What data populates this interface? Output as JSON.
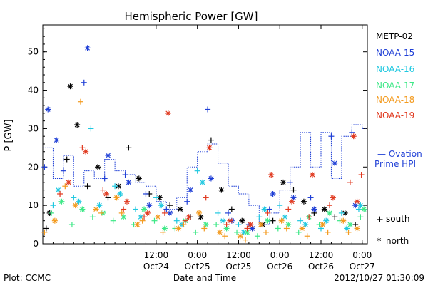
{
  "chart_data": {
    "type": "scatter",
    "title": "Hemispheric Power [GW]",
    "xlabel": "Date and Time",
    "ylabel": "P [GW]",
    "xlim": [
      "2012-10-23T03:00",
      "2012-10-27T01:30"
    ],
    "ylim": [
      0,
      57
    ],
    "yticks": [
      0,
      10,
      20,
      30,
      40,
      50
    ],
    "xticks": [
      {
        "at": "2012-10-24T12:00",
        "line1": "12:00",
        "line2": "Oct24"
      },
      {
        "at": "2012-10-25T00:00",
        "line1": "0:00",
        "line2": "Oct25"
      },
      {
        "at": "2012-10-25T12:00",
        "line1": "12:00",
        "line2": "Oct25"
      },
      {
        "at": "2012-10-26T00:00",
        "line1": "0:00",
        "line2": "Oct26"
      },
      {
        "at": "2012-10-26T12:00",
        "line1": "12:00",
        "line2": "Oct26"
      },
      {
        "at": "2012-10-27T00:00",
        "line1": "0:00",
        "line2": "Oct27"
      }
    ],
    "legend": {
      "placement": "right",
      "entries": [
        {
          "name": "METP-02",
          "color": "#000000"
        },
        {
          "name": "NOAA-15",
          "color": "#1f3fd6"
        },
        {
          "name": "NOAA-16",
          "color": "#1fc8e0"
        },
        {
          "name": "NOAA-17",
          "color": "#3ee887"
        },
        {
          "name": "NOAA-18",
          "color": "#f39a1e"
        },
        {
          "name": "NOAA-19",
          "color": "#e0381e"
        }
      ],
      "ovation_label_1": "— Ovation",
      "ovation_label_2": "Prime HPI",
      "marker_south_symbol": "+",
      "marker_south_label": "south",
      "marker_north_symbol": "*",
      "marker_north_label": "north"
    },
    "ovation_series": {
      "color": "#1f3fd6",
      "x": [
        "2012-10-23T03:00",
        "2012-10-23T06:00",
        "2012-10-23T09:00",
        "2012-10-23T12:00",
        "2012-10-23T15:00",
        "2012-10-23T18:00",
        "2012-10-23T21:00",
        "2012-10-24T00:00",
        "2012-10-24T03:00",
        "2012-10-24T06:00",
        "2012-10-24T09:00",
        "2012-10-24T12:00",
        "2012-10-24T15:00",
        "2012-10-24T18:00",
        "2012-10-24T21:00",
        "2012-10-25T00:00",
        "2012-10-25T03:00",
        "2012-10-25T06:00",
        "2012-10-25T09:00",
        "2012-10-25T12:00",
        "2012-10-25T15:00",
        "2012-10-25T18:00",
        "2012-10-25T21:00",
        "2012-10-26T00:00",
        "2012-10-26T03:00",
        "2012-10-26T06:00",
        "2012-10-26T09:00",
        "2012-10-26T12:00",
        "2012-10-26T15:00",
        "2012-10-26T18:00",
        "2012-10-26T21:00",
        "2012-10-27T00:00"
      ],
      "y": [
        25,
        17,
        23,
        15,
        19,
        17,
        22,
        19,
        18,
        16,
        15,
        11,
        9,
        12,
        20,
        24,
        26,
        21,
        15,
        13,
        10,
        5,
        8,
        14,
        20,
        29,
        20,
        29,
        17,
        28,
        31,
        30
      ]
    },
    "series": [
      {
        "name": "METP-02",
        "color": "#000000",
        "south": [
          [
            "2012-10-23T04:00",
            4
          ],
          [
            "2012-10-23T10:00",
            22
          ],
          [
            "2012-10-23T16:00",
            15
          ],
          [
            "2012-10-23T22:00",
            12
          ],
          [
            "2012-10-24T04:00",
            25
          ],
          [
            "2012-10-24T10:00",
            13
          ],
          [
            "2012-10-24T16:00",
            10
          ],
          [
            "2012-10-24T22:00",
            7
          ],
          [
            "2012-10-25T04:00",
            27
          ],
          [
            "2012-10-25T10:00",
            9
          ],
          [
            "2012-10-25T16:00",
            4
          ],
          [
            "2012-10-25T22:00",
            6
          ],
          [
            "2012-10-26T04:00",
            14
          ],
          [
            "2012-10-26T10:00",
            8
          ],
          [
            "2012-10-26T16:00",
            7
          ],
          [
            "2012-10-26T22:00",
            5
          ]
        ],
        "north": [
          [
            "2012-10-23T05:00",
            8
          ],
          [
            "2012-10-23T11:00",
            41
          ],
          [
            "2012-10-23T13:00",
            31
          ],
          [
            "2012-10-23T19:00",
            20
          ],
          [
            "2012-10-24T01:00",
            15
          ],
          [
            "2012-10-24T07:00",
            17
          ],
          [
            "2012-10-24T13:00",
            12
          ],
          [
            "2012-10-24T19:00",
            9
          ],
          [
            "2012-10-25T01:00",
            7
          ],
          [
            "2012-10-25T07:00",
            14
          ],
          [
            "2012-10-25T13:00",
            6
          ],
          [
            "2012-10-25T19:00",
            5
          ],
          [
            "2012-10-26T01:00",
            16
          ],
          [
            "2012-10-26T07:00",
            11
          ],
          [
            "2012-10-26T13:00",
            9
          ],
          [
            "2012-10-26T19:00",
            8
          ]
        ]
      },
      {
        "name": "NOAA-15",
        "color": "#1f3fd6",
        "south": [
          [
            "2012-10-23T03:30",
            20
          ],
          [
            "2012-10-23T09:00",
            19
          ],
          [
            "2012-10-23T15:00",
            42
          ],
          [
            "2012-10-23T21:00",
            17
          ],
          [
            "2012-10-24T03:00",
            18
          ],
          [
            "2012-10-24T09:00",
            13
          ],
          [
            "2012-10-24T15:00",
            9
          ],
          [
            "2012-10-24T21:00",
            11
          ],
          [
            "2012-10-25T03:00",
            35
          ],
          [
            "2012-10-25T09:00",
            8
          ],
          [
            "2012-10-25T15:00",
            5
          ],
          [
            "2012-10-25T21:00",
            9
          ],
          [
            "2012-10-26T03:00",
            16
          ],
          [
            "2012-10-26T09:00",
            12
          ],
          [
            "2012-10-26T15:00",
            28
          ],
          [
            "2012-10-26T21:00",
            29
          ]
        ],
        "north": [
          [
            "2012-10-23T04:30",
            35
          ],
          [
            "2012-10-23T07:00",
            27
          ],
          [
            "2012-10-23T16:00",
            51
          ],
          [
            "2012-10-23T22:00",
            23
          ],
          [
            "2012-10-24T04:00",
            16
          ],
          [
            "2012-10-24T10:00",
            10
          ],
          [
            "2012-10-24T16:00",
            8
          ],
          [
            "2012-10-24T22:00",
            14
          ],
          [
            "2012-10-25T04:00",
            17
          ],
          [
            "2012-10-25T10:00",
            6
          ],
          [
            "2012-10-25T16:00",
            4
          ],
          [
            "2012-10-25T22:00",
            13
          ],
          [
            "2012-10-26T04:00",
            12
          ],
          [
            "2012-10-26T10:00",
            9
          ],
          [
            "2012-10-26T16:00",
            21
          ],
          [
            "2012-10-26T22:00",
            10
          ]
        ]
      },
      {
        "name": "NOAA-16",
        "color": "#1fc8e0",
        "south": [
          [
            "2012-10-23T06:00",
            10
          ],
          [
            "2012-10-23T12:00",
            12
          ],
          [
            "2012-10-23T17:00",
            30
          ],
          [
            "2012-10-24T00:00",
            15
          ],
          [
            "2012-10-24T06:00",
            9
          ],
          [
            "2012-10-24T12:00",
            12
          ],
          [
            "2012-10-24T18:00",
            6
          ],
          [
            "2012-10-25T00:00",
            19
          ],
          [
            "2012-10-25T06:00",
            8
          ],
          [
            "2012-10-25T12:00",
            5
          ],
          [
            "2012-10-25T18:00",
            7
          ],
          [
            "2012-10-26T00:00",
            10
          ],
          [
            "2012-10-26T06:00",
            6
          ],
          [
            "2012-10-26T12:00",
            4
          ],
          [
            "2012-10-26T18:00",
            8
          ],
          [
            "2012-10-26T23:00",
            9
          ]
        ],
        "north": [
          [
            "2012-10-23T07:30",
            14
          ],
          [
            "2012-10-23T13:30",
            11
          ],
          [
            "2012-10-23T19:30",
            10
          ],
          [
            "2012-10-24T01:30",
            13
          ],
          [
            "2012-10-24T07:30",
            7
          ],
          [
            "2012-10-24T13:30",
            10
          ],
          [
            "2012-10-24T19:30",
            5
          ],
          [
            "2012-10-25T01:30",
            16
          ],
          [
            "2012-10-25T07:30",
            6
          ],
          [
            "2012-10-25T13:30",
            3
          ],
          [
            "2012-10-25T19:30",
            9
          ],
          [
            "2012-10-26T01:30",
            7
          ],
          [
            "2012-10-26T07:30",
            5
          ],
          [
            "2012-10-26T13:30",
            6
          ],
          [
            "2012-10-26T19:30",
            4
          ],
          [
            "2012-10-26T23:30",
            10
          ]
        ]
      },
      {
        "name": "NOAA-17",
        "color": "#3ee887",
        "south": [
          [
            "2012-10-23T05:30",
            8
          ],
          [
            "2012-10-23T11:30",
            5
          ],
          [
            "2012-10-23T17:30",
            7
          ],
          [
            "2012-10-23T23:30",
            6
          ],
          [
            "2012-10-24T05:30",
            5
          ],
          [
            "2012-10-24T11:30",
            6
          ],
          [
            "2012-10-24T17:30",
            4
          ],
          [
            "2012-10-24T23:30",
            3
          ],
          [
            "2012-10-25T05:30",
            5
          ],
          [
            "2012-10-25T11:30",
            3
          ],
          [
            "2012-10-25T17:30",
            2
          ],
          [
            "2012-10-25T23:30",
            4
          ],
          [
            "2012-10-26T05:30",
            3
          ],
          [
            "2012-10-26T11:30",
            5
          ],
          [
            "2012-10-26T17:30",
            6
          ],
          [
            "2012-10-26T23:30",
            7
          ]
        ],
        "north": [
          [
            "2012-10-23T08:30",
            11
          ],
          [
            "2012-10-23T14:30",
            9
          ],
          [
            "2012-10-23T20:30",
            8
          ],
          [
            "2012-10-24T02:30",
            7
          ],
          [
            "2012-10-24T08:30",
            9
          ],
          [
            "2012-10-24T14:30",
            4
          ],
          [
            "2012-10-24T20:30",
            6
          ],
          [
            "2012-10-25T02:30",
            5
          ],
          [
            "2012-10-25T08:30",
            4
          ],
          [
            "2012-10-25T14:30",
            3
          ],
          [
            "2012-10-25T20:30",
            6
          ],
          [
            "2012-10-26T02:30",
            5
          ],
          [
            "2012-10-26T08:30",
            7
          ],
          [
            "2012-10-26T14:30",
            8
          ],
          [
            "2012-10-26T20:30",
            5
          ],
          [
            "2012-10-27T00:30",
            9
          ]
        ]
      },
      {
        "name": "NOAA-18",
        "color": "#f39a1e",
        "south": [
          [
            "2012-10-23T03:30",
            3
          ],
          [
            "2012-10-23T09:30",
            15
          ],
          [
            "2012-10-23T14:00",
            37
          ],
          [
            "2012-10-23T20:00",
            8
          ],
          [
            "2012-10-24T02:00",
            8
          ],
          [
            "2012-10-24T08:00",
            6
          ],
          [
            "2012-10-24T14:00",
            3
          ],
          [
            "2012-10-24T20:00",
            5
          ],
          [
            "2012-10-25T02:00",
            4
          ],
          [
            "2012-10-25T08:00",
            2
          ],
          [
            "2012-10-25T14:00",
            1
          ],
          [
            "2012-10-25T20:00",
            3
          ],
          [
            "2012-10-26T02:00",
            4
          ],
          [
            "2012-10-26T08:00",
            2
          ],
          [
            "2012-10-26T14:00",
            3
          ],
          [
            "2012-10-26T20:00",
            3
          ]
        ],
        "north": [
          [
            "2012-10-23T06:30",
            6
          ],
          [
            "2012-10-23T12:30",
            10
          ],
          [
            "2012-10-23T18:30",
            9
          ],
          [
            "2012-10-24T00:30",
            12
          ],
          [
            "2012-10-24T06:30",
            5
          ],
          [
            "2012-10-24T12:30",
            7
          ],
          [
            "2012-10-24T18:30",
            4
          ],
          [
            "2012-10-25T00:30",
            8
          ],
          [
            "2012-10-25T06:30",
            3
          ],
          [
            "2012-10-25T12:30",
            2
          ],
          [
            "2012-10-25T18:30",
            5
          ],
          [
            "2012-10-26T00:30",
            6
          ],
          [
            "2012-10-26T06:30",
            4
          ],
          [
            "2012-10-26T12:30",
            5
          ],
          [
            "2012-10-26T18:30",
            6
          ],
          [
            "2012-10-26T22:30",
            4
          ]
        ]
      },
      {
        "name": "NOAA-19",
        "color": "#e0381e",
        "south": [
          [
            "2012-10-23T08:00",
            13
          ],
          [
            "2012-10-23T14:30",
            25
          ],
          [
            "2012-10-23T20:30",
            14
          ],
          [
            "2012-10-24T02:30",
            9
          ],
          [
            "2012-10-24T08:30",
            7
          ],
          [
            "2012-10-24T14:30",
            8
          ],
          [
            "2012-10-24T20:30",
            6
          ],
          [
            "2012-10-25T02:30",
            12
          ],
          [
            "2012-10-25T08:30",
            5
          ],
          [
            "2012-10-25T14:30",
            4
          ],
          [
            "2012-10-25T20:30",
            8
          ],
          [
            "2012-10-26T02:30",
            9
          ],
          [
            "2012-10-26T08:30",
            7
          ],
          [
            "2012-10-26T14:30",
            10
          ],
          [
            "2012-10-26T20:30",
            16
          ],
          [
            "2012-10-26T23:45",
            18
          ]
        ],
        "north": [
          [
            "2012-10-23T10:30",
            16
          ],
          [
            "2012-10-23T15:30",
            24
          ],
          [
            "2012-10-23T21:30",
            13
          ],
          [
            "2012-10-24T03:30",
            11
          ],
          [
            "2012-10-24T09:30",
            8
          ],
          [
            "2012-10-24T15:30",
            34
          ],
          [
            "2012-10-24T21:30",
            7
          ],
          [
            "2012-10-25T03:30",
            25
          ],
          [
            "2012-10-25T09:30",
            6
          ],
          [
            "2012-10-25T15:30",
            5
          ],
          [
            "2012-10-25T21:30",
            18
          ],
          [
            "2012-10-26T03:30",
            11
          ],
          [
            "2012-10-26T09:30",
            18
          ],
          [
            "2012-10-26T15:30",
            12
          ],
          [
            "2012-10-26T21:30",
            28
          ],
          [
            "2012-10-26T22:30",
            11
          ]
        ]
      }
    ]
  },
  "footer": {
    "plot_credit": "Plot: CCMC",
    "timestamp": "2012/10/27 01:30:09"
  }
}
